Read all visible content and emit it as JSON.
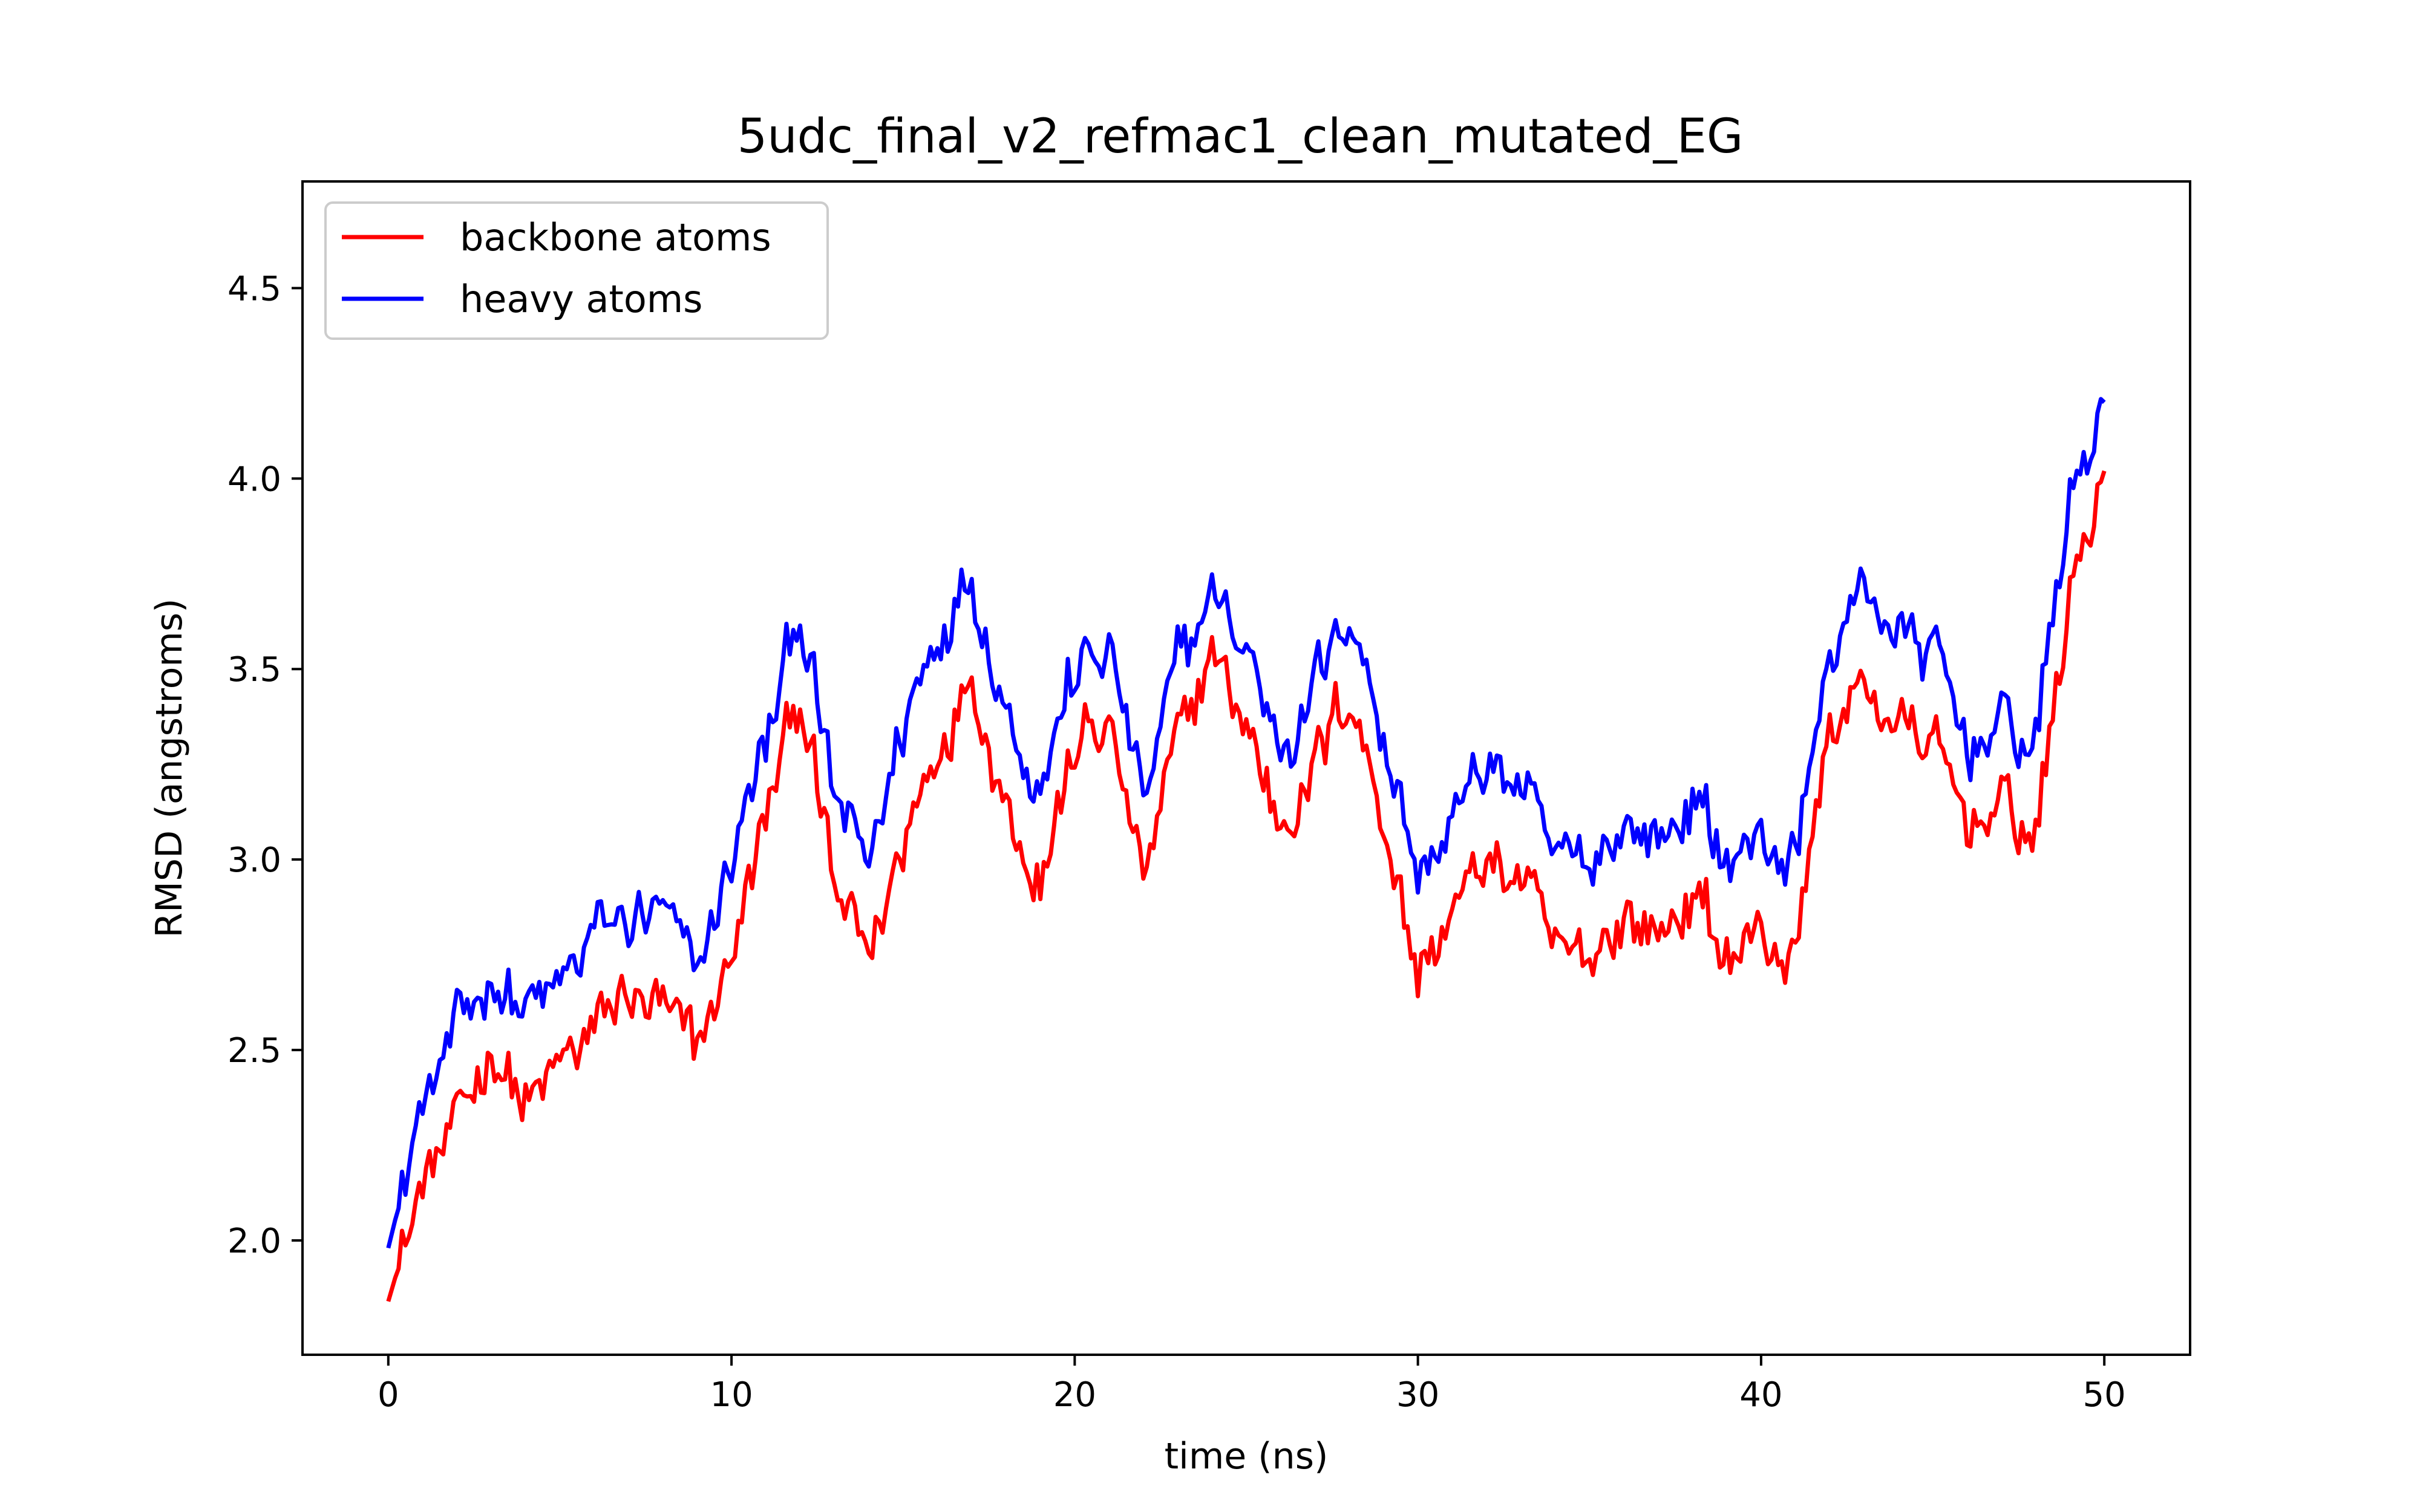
{
  "chart_data": {
    "type": "line",
    "title": "5udc_final_v2_refmac1_clean_mutated_EG",
    "xlabel": "time (ns)",
    "ylabel": "RMSD (angstroms)",
    "xlim": [
      -2.5,
      52.5
    ],
    "ylim": [
      1.7,
      4.78
    ],
    "xticks": [
      0,
      10,
      20,
      30,
      40,
      50
    ],
    "yticks": [
      2.0,
      2.5,
      3.0,
      3.5,
      4.0,
      4.5
    ],
    "xtick_labels": [
      "0",
      "10",
      "20",
      "30",
      "40",
      "50"
    ],
    "ytick_labels": [
      "2.0",
      "2.5",
      "3.0",
      "3.5",
      "4.0",
      "4.5"
    ],
    "grid": false,
    "legend_position": "upper-left",
    "x": [
      0,
      1,
      2,
      3,
      4,
      5,
      6,
      7,
      8,
      9,
      10,
      11,
      12,
      13,
      14,
      15,
      16,
      17,
      18,
      19,
      20,
      21,
      22,
      23,
      24,
      25,
      26,
      27,
      28,
      29,
      30,
      31,
      32,
      33,
      34,
      35,
      36,
      37,
      38,
      39,
      40,
      41,
      42,
      43,
      44,
      45,
      46,
      47,
      48,
      49,
      50
    ],
    "series": [
      {
        "name": "backbone atoms",
        "color": "#ff0000",
        "values": [
          1.84,
          2.15,
          2.3,
          2.5,
          2.35,
          2.45,
          2.55,
          2.65,
          2.6,
          2.5,
          2.75,
          3.1,
          3.45,
          2.9,
          2.75,
          3.05,
          3.3,
          3.5,
          3.15,
          2.95,
          3.3,
          3.35,
          2.95,
          3.3,
          3.55,
          3.35,
          3.1,
          3.25,
          3.45,
          3.1,
          2.7,
          2.85,
          3.0,
          2.95,
          2.75,
          2.75,
          2.85,
          2.8,
          2.9,
          2.75,
          2.8,
          2.75,
          3.35,
          3.45,
          3.35,
          3.3,
          3.1,
          3.15,
          3.05,
          3.7,
          4.02
        ],
        "noise": 0.06
      },
      {
        "name": "heavy atoms",
        "color": "#0000ff",
        "values": [
          1.98,
          2.35,
          2.55,
          2.7,
          2.6,
          2.65,
          2.8,
          2.85,
          2.85,
          2.7,
          3.0,
          3.3,
          3.65,
          3.15,
          3.0,
          3.35,
          3.6,
          3.75,
          3.4,
          3.2,
          3.5,
          3.55,
          3.15,
          3.5,
          3.7,
          3.55,
          3.3,
          3.45,
          3.65,
          3.35,
          2.95,
          3.1,
          3.25,
          3.2,
          3.0,
          3.0,
          3.1,
          3.05,
          3.15,
          3.0,
          3.05,
          3.0,
          3.55,
          3.7,
          3.6,
          3.55,
          3.3,
          3.35,
          3.3,
          3.95,
          4.2
        ],
        "noise": 0.06
      }
    ]
  }
}
